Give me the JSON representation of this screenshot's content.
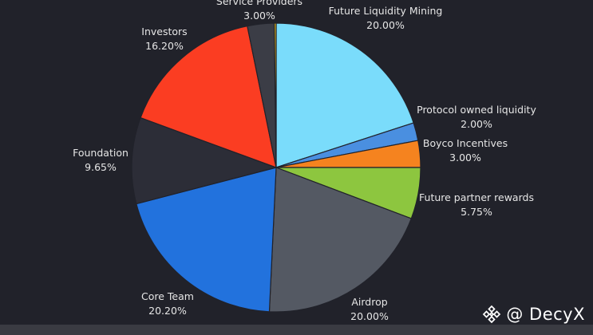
{
  "chart_data": {
    "type": "pie",
    "start_angle_deg": 0,
    "direction": "clockwise",
    "slices": [
      {
        "label": "Future Liquidity Mining",
        "value": 20.0,
        "value_label": "20.00%",
        "color": "#7adcfb"
      },
      {
        "label": "Protocol owned liquidity",
        "value": 2.0,
        "value_label": "2.00%",
        "color": "#4a8fe0"
      },
      {
        "label": "Boyco Incentives",
        "value": 3.0,
        "value_label": "3.00%",
        "color": "#f5831f"
      },
      {
        "label": "Future partner rewards",
        "value": 5.75,
        "value_label": "5.75%",
        "color": "#8dc63f"
      },
      {
        "label": "Airdrop",
        "value": 20.0,
        "value_label": "20.00%",
        "color": "#545963"
      },
      {
        "label": "Core Team",
        "value": 20.2,
        "value_label": "20.20%",
        "color": "#2272dd"
      },
      {
        "label": "Foundation",
        "value": 9.65,
        "value_label": "9.65%",
        "color": "#2c2d37"
      },
      {
        "label": "Investors",
        "value": 16.2,
        "value_label": "16.20%",
        "color": "#fb3d22"
      },
      {
        "label": "Service Providers",
        "value": 3.0,
        "value_label": "3.00%",
        "color": "#3b3d46"
      },
      {
        "label": "",
        "value": 0.2,
        "value_label": "",
        "color": "#f5c518"
      }
    ]
  },
  "watermark": {
    "text": "@ DecyX",
    "icon": "binance-diamond-icon"
  }
}
